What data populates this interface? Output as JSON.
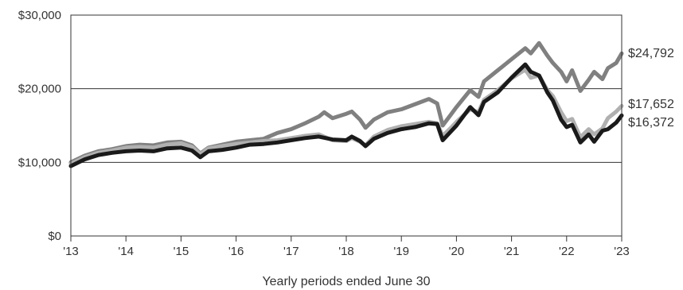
{
  "chart_data": {
    "type": "line",
    "title": "",
    "xlabel": "Yearly periods ended June 30",
    "ylabel": "",
    "x_range": [
      2013,
      2023
    ],
    "ylim": [
      0,
      30000
    ],
    "grid": "horizontal",
    "legend": "none",
    "x_ticks": [
      "'13",
      "'14",
      "'15",
      "'16",
      "'17",
      "'18",
      "'19",
      "'20",
      "'21",
      "'22",
      "'23"
    ],
    "y_ticks": [
      "$0",
      "$10,000",
      "$20,000",
      "$30,000"
    ],
    "y_tick_values": [
      0,
      10000,
      20000,
      30000
    ],
    "end_labels": [
      "$24,792",
      "$17,652",
      "$16,372"
    ],
    "series": [
      {
        "color": "#808080",
        "end_value": 24792,
        "points": [
          [
            2013.0,
            10000
          ],
          [
            2013.25,
            10900
          ],
          [
            2013.5,
            11500
          ],
          [
            2013.75,
            11800
          ],
          [
            2014.0,
            12200
          ],
          [
            2014.25,
            12400
          ],
          [
            2014.5,
            12300
          ],
          [
            2014.75,
            12700
          ],
          [
            2015.0,
            12800
          ],
          [
            2015.2,
            12300
          ],
          [
            2015.35,
            11200
          ],
          [
            2015.5,
            12000
          ],
          [
            2015.75,
            12400
          ],
          [
            2016.0,
            12800
          ],
          [
            2016.25,
            13000
          ],
          [
            2016.5,
            13200
          ],
          [
            2016.75,
            14000
          ],
          [
            2017.0,
            14500
          ],
          [
            2017.25,
            15300
          ],
          [
            2017.5,
            16200
          ],
          [
            2017.6,
            16800
          ],
          [
            2017.75,
            16000
          ],
          [
            2018.0,
            16600
          ],
          [
            2018.1,
            16900
          ],
          [
            2018.25,
            15800
          ],
          [
            2018.35,
            14700
          ],
          [
            2018.5,
            15800
          ],
          [
            2018.75,
            16800
          ],
          [
            2019.0,
            17200
          ],
          [
            2019.25,
            17900
          ],
          [
            2019.5,
            18600
          ],
          [
            2019.65,
            18000
          ],
          [
            2019.75,
            15000
          ],
          [
            2019.9,
            16500
          ],
          [
            2020.0,
            17500
          ],
          [
            2020.25,
            19800
          ],
          [
            2020.4,
            18900
          ],
          [
            2020.5,
            21000
          ],
          [
            2020.75,
            22500
          ],
          [
            2021.0,
            24000
          ],
          [
            2021.25,
            25500
          ],
          [
            2021.35,
            24800
          ],
          [
            2021.5,
            26200
          ],
          [
            2021.65,
            24500
          ],
          [
            2021.75,
            23500
          ],
          [
            2021.9,
            22300
          ],
          [
            2022.0,
            21000
          ],
          [
            2022.1,
            22500
          ],
          [
            2022.25,
            19700
          ],
          [
            2022.4,
            21200
          ],
          [
            2022.5,
            22300
          ],
          [
            2022.65,
            21300
          ],
          [
            2022.75,
            22800
          ],
          [
            2022.9,
            23500
          ],
          [
            2023.0,
            24792
          ]
        ]
      },
      {
        "color": "#b0b0b0",
        "end_value": 17652,
        "points": [
          [
            2013.0,
            9800
          ],
          [
            2013.25,
            10700
          ],
          [
            2013.5,
            11300
          ],
          [
            2013.75,
            11600
          ],
          [
            2014.0,
            12000
          ],
          [
            2014.25,
            12100
          ],
          [
            2014.5,
            12000
          ],
          [
            2014.75,
            12400
          ],
          [
            2015.0,
            12600
          ],
          [
            2015.2,
            12100
          ],
          [
            2015.35,
            11100
          ],
          [
            2015.5,
            11900
          ],
          [
            2015.75,
            12200
          ],
          [
            2016.0,
            12500
          ],
          [
            2016.25,
            12700
          ],
          [
            2016.5,
            12900
          ],
          [
            2016.75,
            13000
          ],
          [
            2017.0,
            13300
          ],
          [
            2017.25,
            13600
          ],
          [
            2017.5,
            13800
          ],
          [
            2017.75,
            13000
          ],
          [
            2018.0,
            12900
          ],
          [
            2018.1,
            13300
          ],
          [
            2018.25,
            12800
          ],
          [
            2018.35,
            12300
          ],
          [
            2018.5,
            13500
          ],
          [
            2018.75,
            14400
          ],
          [
            2019.0,
            14900
          ],
          [
            2019.25,
            15200
          ],
          [
            2019.5,
            15500
          ],
          [
            2019.65,
            15300
          ],
          [
            2019.75,
            13600
          ],
          [
            2019.9,
            14700
          ],
          [
            2020.0,
            15500
          ],
          [
            2020.25,
            17200
          ],
          [
            2020.4,
            16800
          ],
          [
            2020.5,
            18500
          ],
          [
            2020.75,
            19800
          ],
          [
            2021.0,
            21400
          ],
          [
            2021.25,
            22600
          ],
          [
            2021.35,
            21500
          ],
          [
            2021.5,
            21800
          ],
          [
            2021.65,
            19800
          ],
          [
            2021.75,
            19000
          ],
          [
            2021.9,
            16800
          ],
          [
            2022.0,
            15600
          ],
          [
            2022.1,
            15900
          ],
          [
            2022.25,
            13400
          ],
          [
            2022.4,
            14500
          ],
          [
            2022.5,
            13800
          ],
          [
            2022.65,
            14600
          ],
          [
            2022.75,
            16000
          ],
          [
            2022.9,
            16900
          ],
          [
            2023.0,
            17652
          ]
        ]
      },
      {
        "color": "#1a1a1a",
        "end_value": 16372,
        "points": [
          [
            2013.0,
            9500
          ],
          [
            2013.25,
            10400
          ],
          [
            2013.5,
            11000
          ],
          [
            2013.75,
            11300
          ],
          [
            2014.0,
            11500
          ],
          [
            2014.25,
            11600
          ],
          [
            2014.5,
            11500
          ],
          [
            2014.75,
            11900
          ],
          [
            2015.0,
            12000
          ],
          [
            2015.2,
            11600
          ],
          [
            2015.35,
            10700
          ],
          [
            2015.5,
            11500
          ],
          [
            2015.75,
            11700
          ],
          [
            2016.0,
            12000
          ],
          [
            2016.25,
            12400
          ],
          [
            2016.5,
            12500
          ],
          [
            2016.75,
            12700
          ],
          [
            2017.0,
            13000
          ],
          [
            2017.25,
            13300
          ],
          [
            2017.5,
            13500
          ],
          [
            2017.75,
            13100
          ],
          [
            2018.0,
            13000
          ],
          [
            2018.1,
            13500
          ],
          [
            2018.25,
            12900
          ],
          [
            2018.35,
            12200
          ],
          [
            2018.5,
            13200
          ],
          [
            2018.75,
            14000
          ],
          [
            2019.0,
            14500
          ],
          [
            2019.25,
            14800
          ],
          [
            2019.5,
            15300
          ],
          [
            2019.65,
            15200
          ],
          [
            2019.75,
            13000
          ],
          [
            2019.9,
            14200
          ],
          [
            2020.0,
            15000
          ],
          [
            2020.25,
            17500
          ],
          [
            2020.4,
            16400
          ],
          [
            2020.5,
            18200
          ],
          [
            2020.75,
            19500
          ],
          [
            2021.0,
            21500
          ],
          [
            2021.25,
            23300
          ],
          [
            2021.35,
            22300
          ],
          [
            2021.5,
            21800
          ],
          [
            2021.65,
            19500
          ],
          [
            2021.75,
            18400
          ],
          [
            2021.9,
            15800
          ],
          [
            2022.0,
            14800
          ],
          [
            2022.1,
            15100
          ],
          [
            2022.25,
            12700
          ],
          [
            2022.4,
            13800
          ],
          [
            2022.5,
            12800
          ],
          [
            2022.65,
            14300
          ],
          [
            2022.75,
            14500
          ],
          [
            2022.9,
            15400
          ],
          [
            2023.0,
            16372
          ]
        ]
      }
    ]
  }
}
